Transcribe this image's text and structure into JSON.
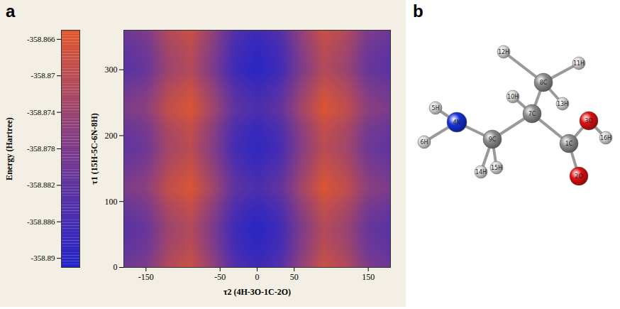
{
  "chart_data": {
    "type": "heatmap",
    "panel_label": "a",
    "x_label": "τ2 (4H-3O-1C-2O)",
    "y_label": "τ1 (15H-5C-6N-8H)",
    "x": [
      -180,
      -150,
      -120,
      -90,
      -60,
      -30,
      0,
      30,
      60,
      90,
      120,
      150,
      180
    ],
    "y": [
      0,
      30,
      60,
      90,
      120,
      150,
      180,
      210,
      240,
      270,
      300,
      330,
      360
    ],
    "values": [
      [
        -358.88,
        -358.878,
        -358.871,
        -358.868,
        -358.875,
        -358.884,
        -358.887,
        -358.884,
        -358.875,
        -358.868,
        -358.871,
        -358.878,
        -358.88
      ],
      [
        -358.882,
        -358.88,
        -358.873,
        -358.87,
        -358.877,
        -358.886,
        -358.889,
        -358.886,
        -358.877,
        -358.87,
        -358.873,
        -358.88,
        -358.882
      ],
      [
        -358.883,
        -358.881,
        -358.874,
        -358.871,
        -358.878,
        -358.887,
        -358.89,
        -358.887,
        -358.878,
        -358.871,
        -358.874,
        -358.881,
        -358.883
      ],
      [
        -358.881,
        -358.879,
        -358.872,
        -358.869,
        -358.876,
        -358.885,
        -358.888,
        -358.885,
        -358.876,
        -358.869,
        -358.872,
        -358.879,
        -358.881
      ],
      [
        -358.878,
        -358.876,
        -358.869,
        -358.866,
        -358.873,
        -358.882,
        -358.885,
        -358.882,
        -358.873,
        -358.866,
        -358.869,
        -358.876,
        -358.878
      ],
      [
        -358.88,
        -358.878,
        -358.871,
        -358.868,
        -358.875,
        -358.884,
        -358.887,
        -358.884,
        -358.875,
        -358.868,
        -358.871,
        -358.878,
        -358.88
      ],
      [
        -358.882,
        -358.88,
        -358.873,
        -358.87,
        -358.877,
        -358.886,
        -358.889,
        -358.886,
        -358.877,
        -358.87,
        -358.873,
        -358.88,
        -358.882
      ],
      [
        -358.881,
        -358.879,
        -358.872,
        -358.869,
        -358.876,
        -358.885,
        -358.888,
        -358.885,
        -358.876,
        -358.869,
        -358.872,
        -358.879,
        -358.881
      ],
      [
        -358.878,
        -358.876,
        -358.869,
        -358.866,
        -358.873,
        -358.882,
        -358.885,
        -358.882,
        -358.873,
        -358.866,
        -358.869,
        -358.876,
        -358.878
      ],
      [
        -358.88,
        -358.878,
        -358.871,
        -358.868,
        -358.875,
        -358.884,
        -358.887,
        -358.884,
        -358.875,
        -358.868,
        -358.871,
        -358.878,
        -358.88
      ],
      [
        -358.883,
        -358.881,
        -358.874,
        -358.871,
        -358.878,
        -358.887,
        -358.89,
        -358.887,
        -358.878,
        -358.871,
        -358.874,
        -358.881,
        -358.883
      ],
      [
        -358.882,
        -358.88,
        -358.873,
        -358.87,
        -358.877,
        -358.886,
        -358.889,
        -358.886,
        -358.877,
        -358.87,
        -358.873,
        -358.88,
        -358.882
      ],
      [
        -358.88,
        -358.878,
        -358.871,
        -358.868,
        -358.875,
        -358.884,
        -358.887,
        -358.884,
        -358.875,
        -358.868,
        -358.871,
        -358.878,
        -358.88
      ]
    ],
    "xlim": [
      -180,
      180
    ],
    "ylim": [
      0,
      360
    ],
    "xticks": [
      -150,
      -50,
      0,
      50,
      150
    ],
    "yticks": [
      0,
      100,
      200,
      300
    ],
    "colors": [
      "#2323c8",
      "#7a3b92",
      "#e2572c"
    ],
    "colorbar": {
      "label": "Energy (Hartree)",
      "range": [
        -358.891,
        -358.865
      ],
      "ticks": [
        -358.866,
        -358.87,
        -358.874,
        -358.878,
        -358.882,
        -358.886,
        -358.89
      ]
    }
  },
  "diagram": {
    "panel_label": "b",
    "atoms": [
      {
        "label": "1C",
        "element": "C"
      },
      {
        "label": "2O",
        "element": "O"
      },
      {
        "label": "3O",
        "element": "O"
      },
      {
        "label": "4N",
        "element": "N"
      },
      {
        "label": "5H",
        "element": "H"
      },
      {
        "label": "6H",
        "element": "H"
      },
      {
        "label": "7C",
        "element": "C"
      },
      {
        "label": "8C",
        "element": "C"
      },
      {
        "label": "9C",
        "element": "C"
      },
      {
        "label": "10H",
        "element": "H"
      },
      {
        "label": "11H",
        "element": "H"
      },
      {
        "label": "12H",
        "element": "H"
      },
      {
        "label": "13H",
        "element": "H"
      },
      {
        "label": "14H",
        "element": "H"
      },
      {
        "label": "15H",
        "element": "H"
      },
      {
        "label": "16H",
        "element": "H"
      }
    ],
    "bonds": [
      [
        "4N",
        "5H"
      ],
      [
        "4N",
        "6H"
      ],
      [
        "4N",
        "9C"
      ],
      [
        "9C",
        "14H"
      ],
      [
        "9C",
        "15H"
      ],
      [
        "9C",
        "7C"
      ],
      [
        "7C",
        "10H"
      ],
      [
        "7C",
        "8C"
      ],
      [
        "8C",
        "12H"
      ],
      [
        "8C",
        "11H"
      ],
      [
        "8C",
        "13H"
      ],
      [
        "7C",
        "1C"
      ],
      [
        "1C",
        "3O"
      ],
      [
        "1C",
        "2O"
      ],
      [
        "3O",
        "16H"
      ]
    ]
  }
}
